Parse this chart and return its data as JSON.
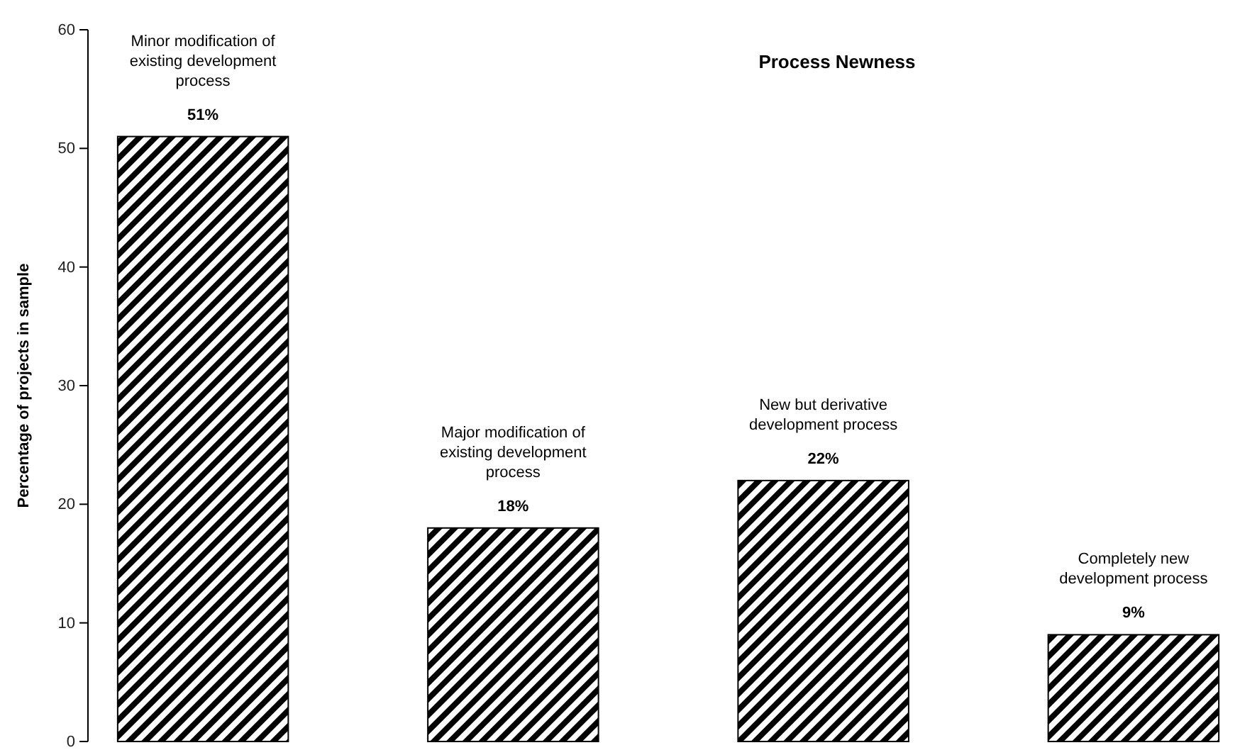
{
  "chart_data": {
    "type": "bar",
    "title": "Process Newness",
    "ylabel": "Percentage of projects in sample",
    "categories": [
      "Minor modification of existing development process",
      "Major modification of existing development process",
      "New but derivative development process",
      "Completely new development process"
    ],
    "values": [
      51,
      18,
      22,
      9
    ],
    "value_labels": [
      "51%",
      "18%",
      "22%",
      "9%"
    ],
    "color": "#000000",
    "ylim": [
      0,
      60
    ],
    "yticks": [
      0,
      10,
      20,
      30,
      40,
      50,
      60
    ],
    "grid": false
  }
}
